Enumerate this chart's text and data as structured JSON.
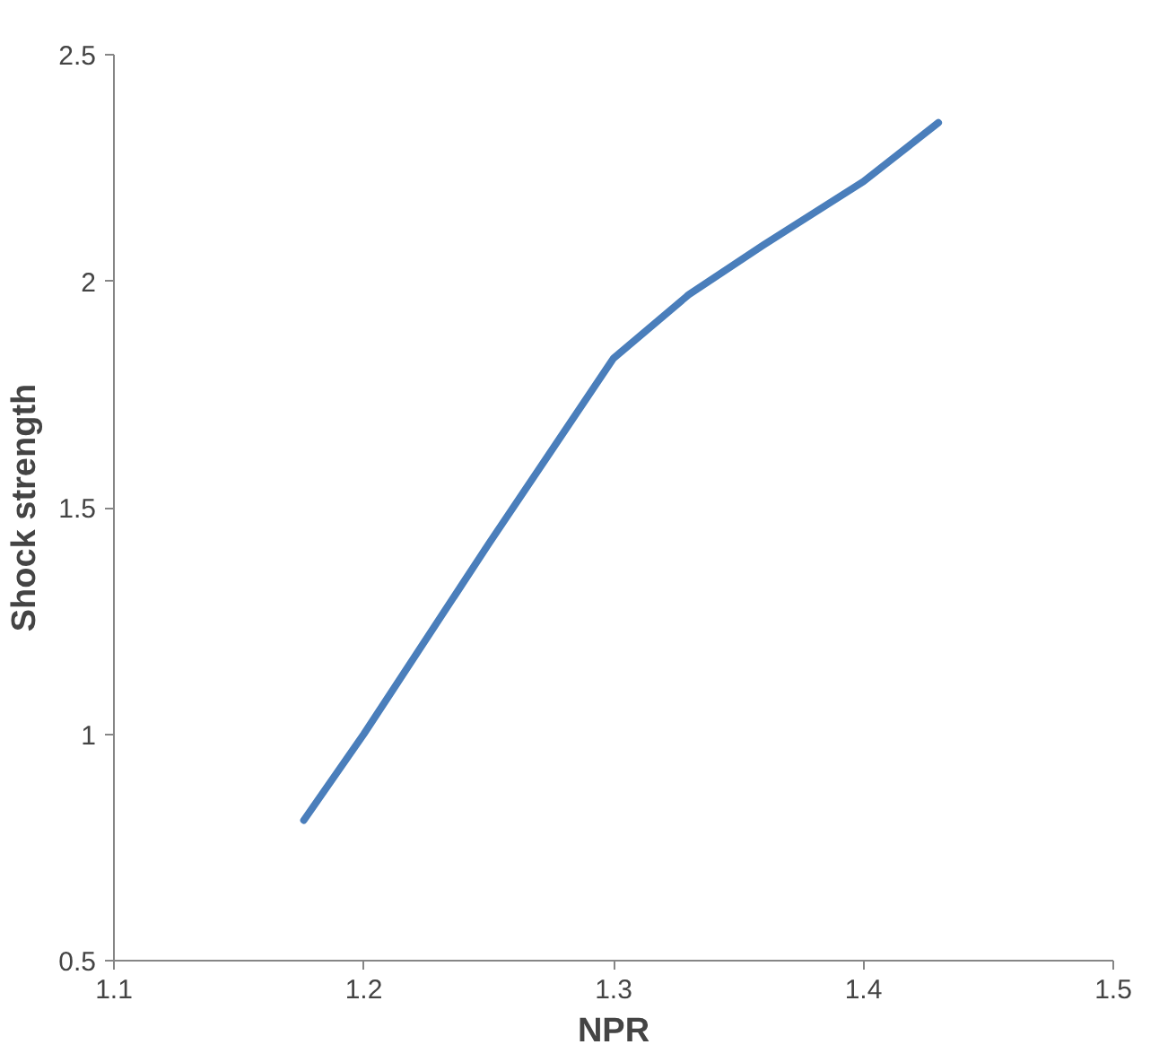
{
  "chart_data": {
    "type": "line",
    "xlabel": "NPR",
    "ylabel": "Shock strength",
    "x": [
      1.176,
      1.2,
      1.25,
      1.3,
      1.33,
      1.36,
      1.4,
      1.43
    ],
    "series": [
      {
        "color": "#4a7ebb",
        "values": [
          0.81,
          1.0,
          1.42,
          1.83,
          1.97,
          2.08,
          2.22,
          2.35
        ]
      }
    ],
    "xlim": [
      1.1,
      1.5
    ],
    "ylim": [
      0.5,
      2.5
    ],
    "xticks": [
      1.1,
      1.2,
      1.3,
      1.4,
      1.5
    ],
    "yticks": [
      0.5,
      1,
      1.5,
      2,
      2.5
    ],
    "line_style": "solid"
  }
}
